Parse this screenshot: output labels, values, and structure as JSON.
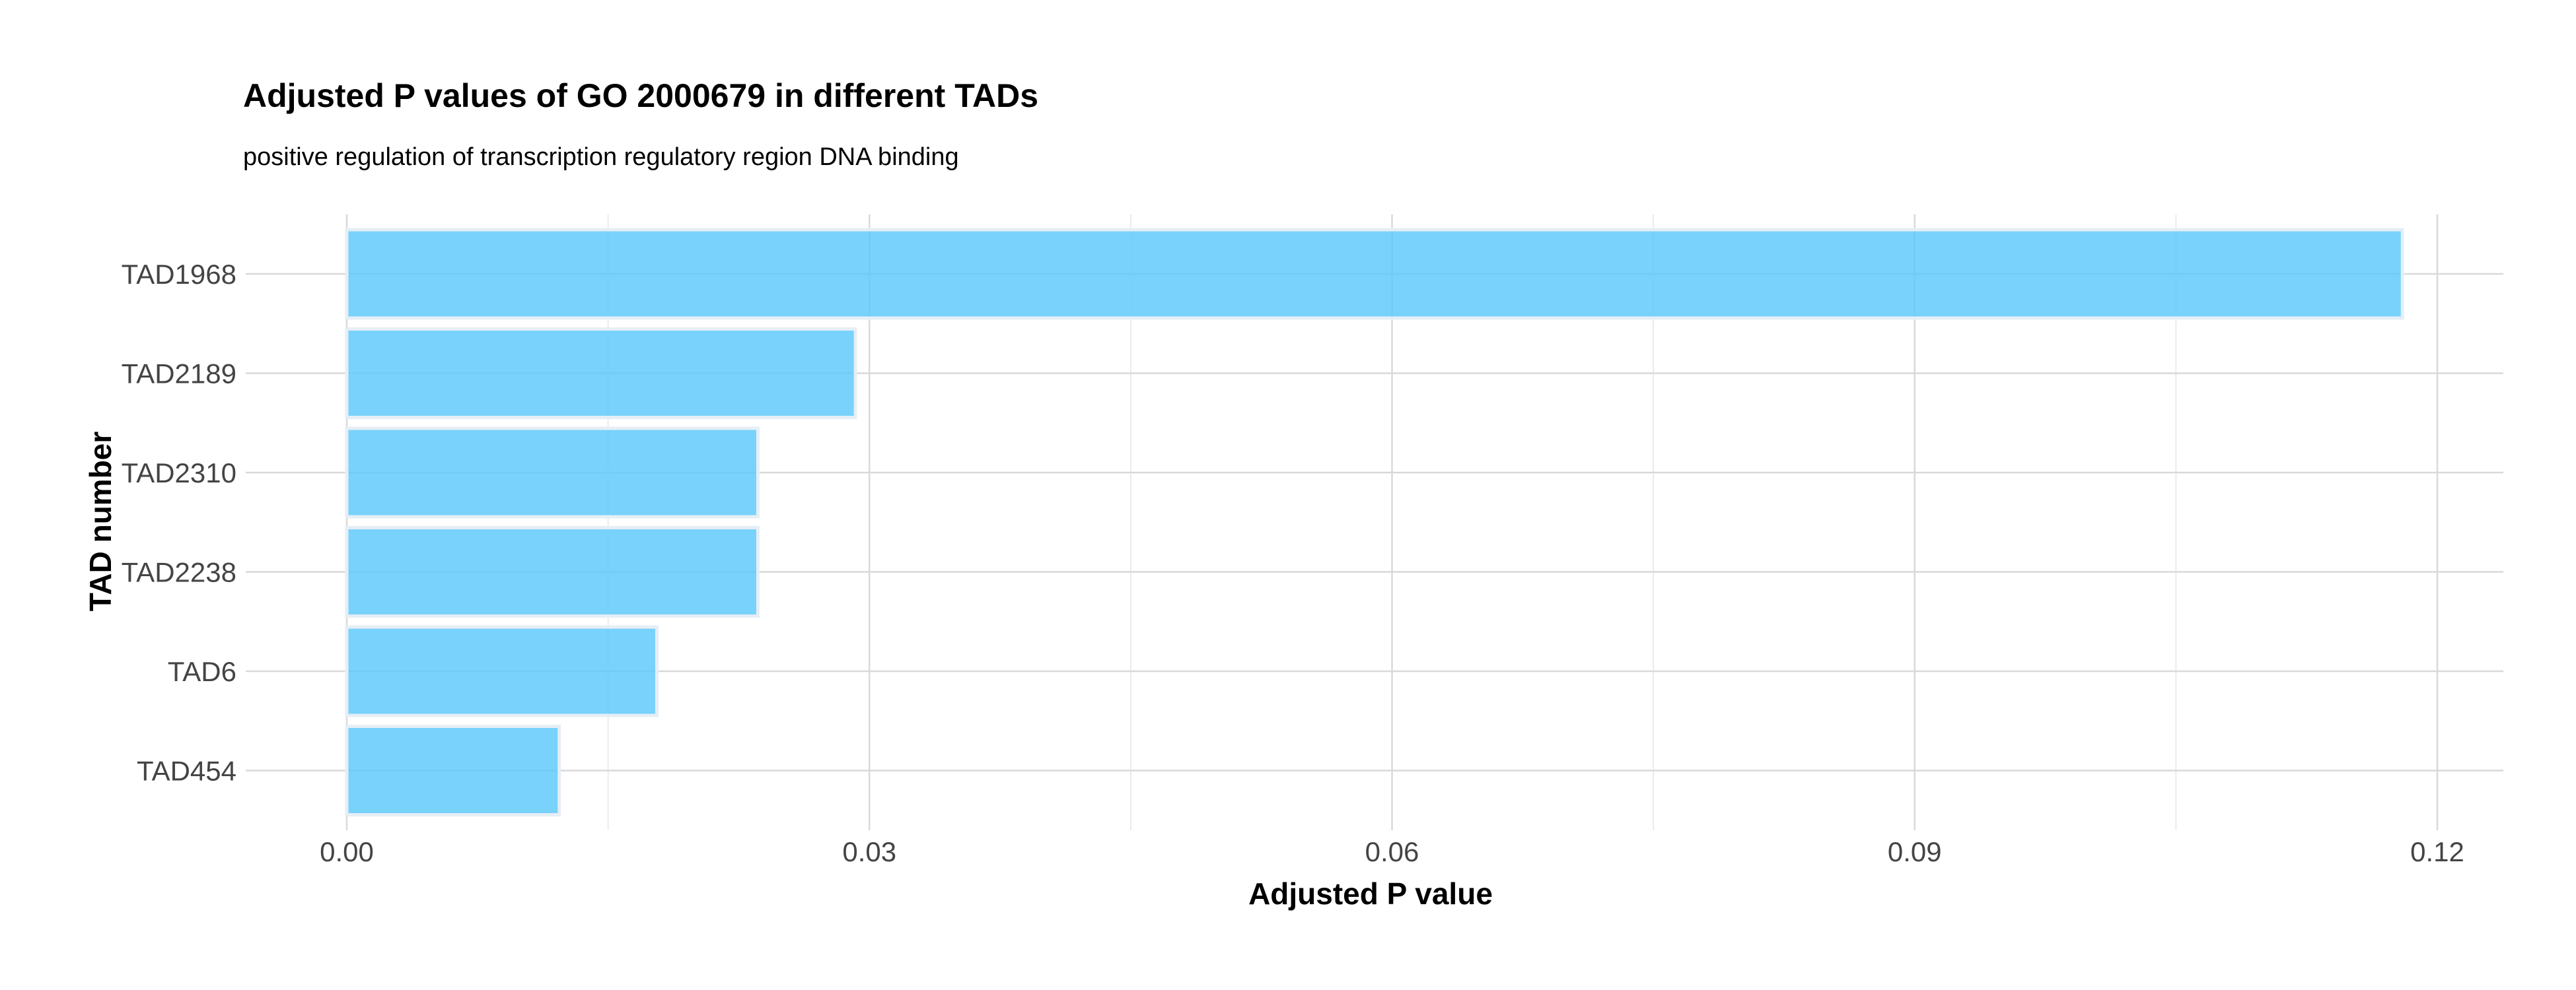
{
  "chart_data": {
    "type": "bar",
    "orientation": "horizontal",
    "title": "Adjusted P values of GO 2000679 in different TADs",
    "subtitle": "positive regulation of transcription regulatory region DNA binding",
    "xlabel": "Adjusted P value",
    "ylabel": "TAD number",
    "categories": [
      "TAD1968",
      "TAD2189",
      "TAD2310",
      "TAD2238",
      "TAD6",
      "TAD454"
    ],
    "values": [
      0.118,
      0.0292,
      0.0236,
      0.0236,
      0.0178,
      0.0122
    ],
    "xlim": [
      0,
      0.12
    ],
    "x_ticks": [
      0.0,
      0.03,
      0.06,
      0.09,
      0.12
    ],
    "x_tick_labels": [
      "0.00",
      "0.03",
      "0.06",
      "0.09",
      "0.12"
    ],
    "grid": true,
    "legend": "none",
    "colors": {
      "bar_fill": "#5AC8FA",
      "bar_stroke": "#E6EEF5",
      "grid_major": "#D9D9D9",
      "grid_minor": "#EBEBEB"
    }
  }
}
